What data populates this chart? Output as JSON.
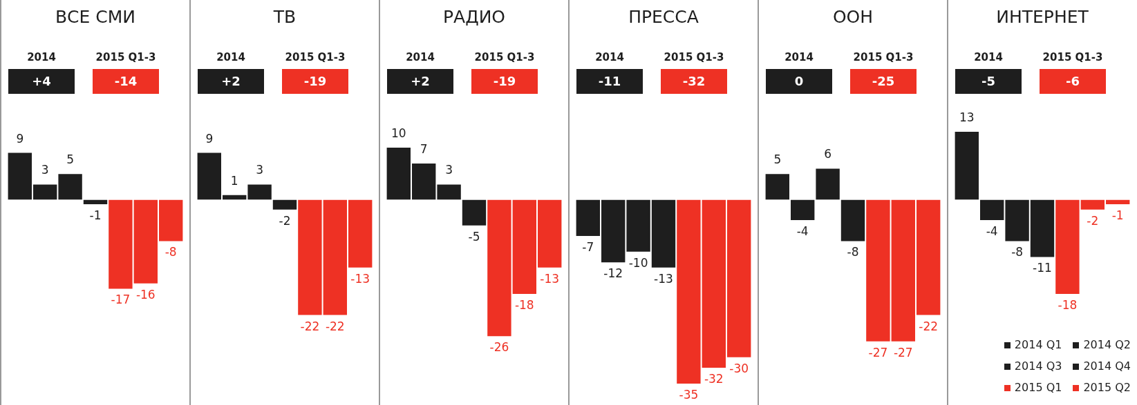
{
  "chart_data": [
    {
      "type": "bar",
      "title": "ВСЕ СМИ",
      "annotations": [
        "2014",
        "+4",
        "2015 Q1-3",
        "-14"
      ],
      "categories": [
        null
      ],
      "legend": false,
      "data_labels": true,
      "series": [
        {
          "color": "#1e1e1e",
          "values": [
            9
          ]
        },
        {
          "color": "#1e1e1e",
          "values": [
            3
          ]
        },
        {
          "color": "#1e1e1e",
          "values": [
            5
          ]
        },
        {
          "color": "#1e1e1e",
          "values": [
            -1
          ]
        },
        {
          "color": "#ee3124",
          "values": [
            -17
          ]
        },
        {
          "color": "#ee3124",
          "values": [
            -16
          ]
        },
        {
          "color": "#ee3124",
          "values": [
            -8
          ]
        }
      ]
    },
    {
      "type": "bar",
      "title": "ТВ",
      "annotations": [
        "2014",
        "+2",
        "2015 Q1-3",
        "-19"
      ],
      "categories": [
        null
      ],
      "legend": false,
      "data_labels": true,
      "series": [
        {
          "color": "#1e1e1e",
          "values": [
            9
          ]
        },
        {
          "color": "#1e1e1e",
          "values": [
            1
          ]
        },
        {
          "color": "#1e1e1e",
          "values": [
            3
          ]
        },
        {
          "color": "#1e1e1e",
          "values": [
            -2
          ]
        },
        {
          "color": "#ee3124",
          "values": [
            -22
          ]
        },
        {
          "color": "#ee3124",
          "values": [
            -22
          ]
        },
        {
          "color": "#ee3124",
          "values": [
            -13
          ]
        }
      ]
    },
    {
      "type": "bar",
      "title": "РАДИО",
      "annotations": [
        "2014",
        "+2",
        "2015 Q1-3",
        "-19"
      ],
      "categories": [
        null
      ],
      "legend": false,
      "data_labels": true,
      "series": [
        {
          "color": "#1e1e1e",
          "values": [
            10
          ]
        },
        {
          "color": "#1e1e1e",
          "values": [
            7
          ]
        },
        {
          "color": "#1e1e1e",
          "values": [
            3
          ]
        },
        {
          "color": "#1e1e1e",
          "values": [
            -5
          ]
        },
        {
          "color": "#ee3124",
          "values": [
            -26
          ]
        },
        {
          "color": "#ee3124",
          "values": [
            -18
          ]
        },
        {
          "color": "#ee3124",
          "values": [
            -13
          ]
        }
      ]
    },
    {
      "type": "bar",
      "title": "ПРЕССА",
      "annotations": [
        "2014",
        "-11",
        "2015 Q1-3",
        "-32"
      ],
      "categories": [
        null
      ],
      "legend": false,
      "data_labels": true,
      "series": [
        {
          "color": "#1e1e1e",
          "values": [
            -7
          ]
        },
        {
          "color": "#1e1e1e",
          "values": [
            -12
          ]
        },
        {
          "color": "#1e1e1e",
          "values": [
            -10
          ]
        },
        {
          "color": "#1e1e1e",
          "values": [
            -13
          ]
        },
        {
          "color": "#ee3124",
          "values": [
            -35
          ]
        },
        {
          "color": "#ee3124",
          "values": [
            -32
          ]
        },
        {
          "color": "#ee3124",
          "values": [
            -30
          ]
        }
      ]
    },
    {
      "type": "bar",
      "title": "ООН",
      "annotations": [
        "2014",
        "0",
        "2015 Q1-3",
        "-25"
      ],
      "categories": [
        null
      ],
      "legend": false,
      "data_labels": true,
      "series": [
        {
          "color": "#1e1e1e",
          "values": [
            5
          ]
        },
        {
          "color": "#1e1e1e",
          "values": [
            -4
          ]
        },
        {
          "color": "#1e1e1e",
          "values": [
            6
          ]
        },
        {
          "color": "#1e1e1e",
          "values": [
            -8
          ]
        },
        {
          "color": "#ee3124",
          "values": [
            -27
          ]
        },
        {
          "color": "#ee3124",
          "values": [
            -27
          ]
        },
        {
          "color": "#ee3124",
          "values": [
            -22
          ]
        }
      ]
    },
    {
      "type": "bar",
      "title": "ИНТЕРНЕТ",
      "annotations": [
        "2014",
        "-5",
        "2015 Q1-3",
        "-6"
      ],
      "categories": [
        null
      ],
      "legend": "bottom right",
      "data_labels": true,
      "series": [
        {
          "name": "2014 Q1",
          "color": "#1e1e1e",
          "values": [
            13
          ]
        },
        {
          "name": "2014 Q2",
          "color": "#1e1e1e",
          "values": [
            -4
          ]
        },
        {
          "name": "2014 Q3",
          "color": "#1e1e1e",
          "values": [
            -8
          ]
        },
        {
          "name": "2014 Q4",
          "color": "#1e1e1e",
          "values": [
            -11
          ]
        },
        {
          "name": "2015 Q1",
          "color": "#ee3124",
          "values": [
            -18
          ]
        },
        {
          "name": "2015 Q2",
          "color": "#ee3124",
          "values": [
            -2
          ]
        },
        {
          "color": "#ee3124",
          "values": [
            -1
          ]
        }
      ]
    }
  ]
}
